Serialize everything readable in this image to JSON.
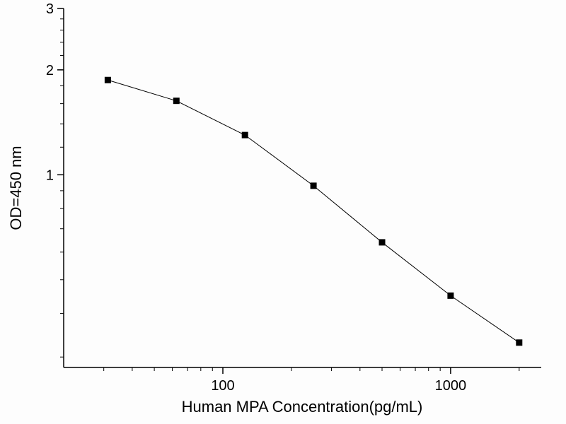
{
  "chart_data": {
    "type": "scatter",
    "title": "",
    "xlabel": "Human MPA  Concentration(pg/mL)",
    "ylabel": "OD=450 nm",
    "x_scale": "log",
    "y_scale": "log",
    "xlim": [
      20,
      2500
    ],
    "ylim": [
      0.28,
      3
    ],
    "x": [
      31.25,
      62.5,
      125,
      250,
      500,
      1000,
      2000
    ],
    "y": [
      1.87,
      1.63,
      1.3,
      0.93,
      0.64,
      0.45,
      0.33
    ],
    "x_major_ticks": [
      100,
      1000
    ],
    "x_major_tick_labels": [
      "100",
      "1000"
    ],
    "y_major_ticks": [
      1,
      2,
      3
    ],
    "y_major_tick_labels": [
      "1",
      "2",
      "3"
    ],
    "x_minor_ticks": [
      30,
      40,
      50,
      60,
      70,
      80,
      90,
      200,
      300,
      400,
      500,
      600,
      700,
      800,
      900,
      2000
    ],
    "y_minor_ticks": [
      0.3,
      0.4,
      0.5,
      0.6,
      0.7,
      0.8,
      0.9,
      1.2,
      1.4,
      1.6,
      1.8,
      2.2,
      2.4,
      2.6,
      2.8
    ],
    "marker": "filled-square",
    "line": "solid",
    "series_color": "#000000",
    "axis_color": "#000000",
    "background_color": "#fdfdfd",
    "grid": "off",
    "legend": "none"
  }
}
